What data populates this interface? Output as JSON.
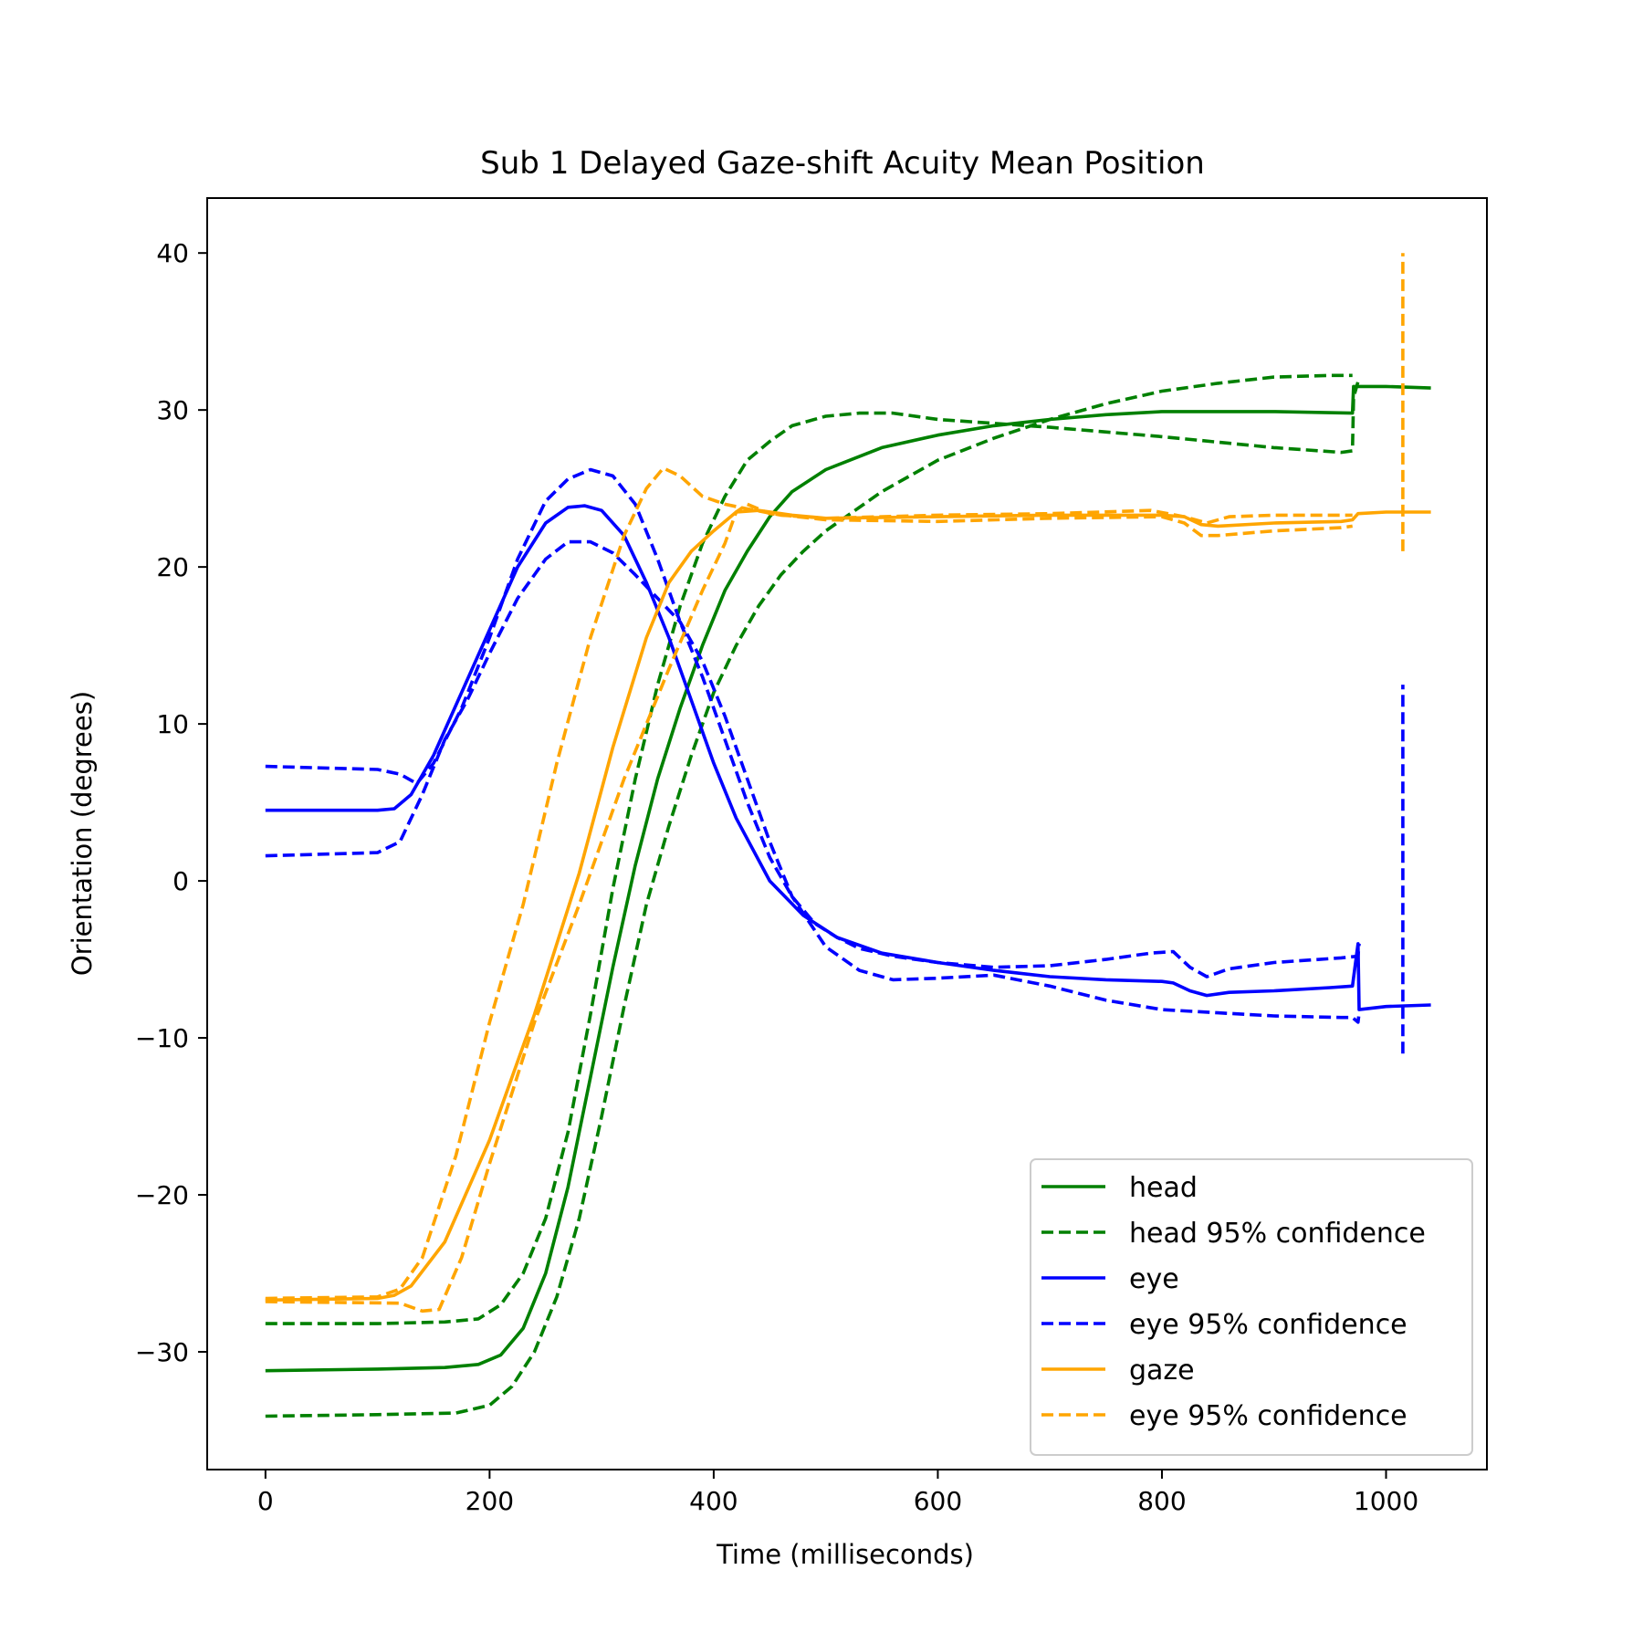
{
  "chart_data": {
    "type": "line",
    "title": "Sub 1 Delayed Gaze-shift Acuity Mean Position",
    "xlabel": "Time (milliseconds)",
    "ylabel": "Orientation (degrees)",
    "xlim": [
      -52,
      1090
    ],
    "ylim": [
      -37.5,
      43.5
    ],
    "xticks": [
      0,
      200,
      400,
      600,
      800,
      1000
    ],
    "yticks": [
      -30,
      -20,
      -10,
      0,
      10,
      20,
      30,
      40
    ],
    "ytick_labels": [
      "−30",
      "−20",
      "−10",
      "0",
      "10",
      "20",
      "30",
      "40"
    ],
    "grid": false,
    "legend_position": "lower-right",
    "series": [
      {
        "name": "head",
        "color": "#008000",
        "style": "solid",
        "points": [
          [
            0,
            -31.2
          ],
          [
            100,
            -31.1
          ],
          [
            160,
            -31.0
          ],
          [
            190,
            -30.8
          ],
          [
            210,
            -30.2
          ],
          [
            230,
            -28.5
          ],
          [
            250,
            -25.0
          ],
          [
            270,
            -19.5
          ],
          [
            290,
            -12.5
          ],
          [
            310,
            -5.5
          ],
          [
            330,
            1.0
          ],
          [
            350,
            6.5
          ],
          [
            370,
            11.0
          ],
          [
            390,
            15.0
          ],
          [
            410,
            18.5
          ],
          [
            430,
            21.0
          ],
          [
            450,
            23.2
          ],
          [
            470,
            24.8
          ],
          [
            500,
            26.2
          ],
          [
            550,
            27.6
          ],
          [
            600,
            28.4
          ],
          [
            650,
            29.0
          ],
          [
            700,
            29.4
          ],
          [
            750,
            29.7
          ],
          [
            800,
            29.9
          ],
          [
            900,
            29.9
          ],
          [
            970,
            29.8
          ],
          [
            971,
            31.5
          ],
          [
            1000,
            31.5
          ],
          [
            1040,
            31.4
          ]
        ]
      },
      {
        "name": "head 95% confidence",
        "color": "#008000",
        "style": "dashed",
        "points": [
          [
            0,
            -28.2
          ],
          [
            100,
            -28.2
          ],
          [
            160,
            -28.1
          ],
          [
            190,
            -27.9
          ],
          [
            210,
            -27.0
          ],
          [
            230,
            -25.0
          ],
          [
            250,
            -21.5
          ],
          [
            270,
            -16.0
          ],
          [
            290,
            -8.5
          ],
          [
            310,
            -0.5
          ],
          [
            330,
            6.5
          ],
          [
            350,
            12.5
          ],
          [
            370,
            17.5
          ],
          [
            390,
            21.5
          ],
          [
            410,
            24.5
          ],
          [
            430,
            26.8
          ],
          [
            450,
            28.0
          ],
          [
            470,
            29.0
          ],
          [
            500,
            29.6
          ],
          [
            530,
            29.8
          ],
          [
            560,
            29.8
          ],
          [
            600,
            29.4
          ],
          [
            700,
            28.9
          ],
          [
            800,
            28.3
          ],
          [
            900,
            27.6
          ],
          [
            960,
            27.3
          ],
          [
            970,
            27.4
          ],
          [
            971,
            30.8
          ],
          [
            975,
            31.8
          ]
        ]
      },
      {
        "name": "head 95% confidence",
        "color": "#008000",
        "style": "dashed",
        "points": [
          [
            0,
            -34.1
          ],
          [
            100,
            -34.0
          ],
          [
            170,
            -33.9
          ],
          [
            200,
            -33.4
          ],
          [
            220,
            -32.2
          ],
          [
            240,
            -30.0
          ],
          [
            260,
            -26.5
          ],
          [
            280,
            -21.5
          ],
          [
            300,
            -15.0
          ],
          [
            320,
            -8.0
          ],
          [
            340,
            -1.5
          ],
          [
            360,
            3.5
          ],
          [
            380,
            8.0
          ],
          [
            400,
            12.0
          ],
          [
            420,
            15.0
          ],
          [
            440,
            17.5
          ],
          [
            460,
            19.5
          ],
          [
            480,
            21.0
          ],
          [
            500,
            22.3
          ],
          [
            550,
            24.8
          ],
          [
            600,
            26.8
          ],
          [
            650,
            28.2
          ],
          [
            700,
            29.4
          ],
          [
            750,
            30.4
          ],
          [
            800,
            31.2
          ],
          [
            850,
            31.7
          ],
          [
            900,
            32.1
          ],
          [
            950,
            32.2
          ],
          [
            970,
            32.2
          ]
        ]
      },
      {
        "name": "eye",
        "color": "#0000ff",
        "style": "solid",
        "points": [
          [
            0,
            4.5
          ],
          [
            100,
            4.5
          ],
          [
            115,
            4.6
          ],
          [
            130,
            5.5
          ],
          [
            150,
            8.0
          ],
          [
            175,
            12.0
          ],
          [
            200,
            16.0
          ],
          [
            225,
            20.0
          ],
          [
            250,
            22.8
          ],
          [
            270,
            23.8
          ],
          [
            285,
            23.9
          ],
          [
            300,
            23.6
          ],
          [
            320,
            22.0
          ],
          [
            340,
            19.0
          ],
          [
            360,
            15.5
          ],
          [
            380,
            11.5
          ],
          [
            400,
            7.5
          ],
          [
            420,
            4.0
          ],
          [
            450,
            0.0
          ],
          [
            480,
            -2.2
          ],
          [
            510,
            -3.6
          ],
          [
            550,
            -4.6
          ],
          [
            600,
            -5.2
          ],
          [
            650,
            -5.7
          ],
          [
            700,
            -6.1
          ],
          [
            750,
            -6.3
          ],
          [
            800,
            -6.4
          ],
          [
            810,
            -6.5
          ],
          [
            825,
            -7.0
          ],
          [
            840,
            -7.3
          ],
          [
            860,
            -7.1
          ],
          [
            900,
            -7.0
          ],
          [
            950,
            -6.8
          ],
          [
            970,
            -6.7
          ],
          [
            975,
            -4.0
          ],
          [
            976,
            -8.2
          ],
          [
            1000,
            -8.0
          ],
          [
            1040,
            -7.9
          ]
        ]
      },
      {
        "name": "eye 95% confidence",
        "color": "#0000ff",
        "style": "dashed",
        "points": [
          [
            0,
            7.3
          ],
          [
            100,
            7.1
          ],
          [
            120,
            6.8
          ],
          [
            135,
            6.2
          ],
          [
            150,
            7.5
          ],
          [
            175,
            11.0
          ],
          [
            200,
            15.5
          ],
          [
            225,
            20.5
          ],
          [
            250,
            24.2
          ],
          [
            270,
            25.6
          ],
          [
            290,
            26.2
          ],
          [
            310,
            25.8
          ],
          [
            330,
            24.0
          ],
          [
            350,
            20.5
          ],
          [
            370,
            16.5
          ],
          [
            390,
            13.0
          ],
          [
            410,
            9.0
          ],
          [
            430,
            5.0
          ],
          [
            450,
            1.5
          ],
          [
            470,
            -1.0
          ],
          [
            490,
            -2.7
          ],
          [
            510,
            -3.6
          ],
          [
            530,
            -4.3
          ],
          [
            560,
            -4.8
          ],
          [
            600,
            -5.2
          ],
          [
            650,
            -5.5
          ],
          [
            700,
            -5.4
          ],
          [
            750,
            -5.0
          ],
          [
            790,
            -4.6
          ],
          [
            810,
            -4.5
          ],
          [
            825,
            -5.5
          ],
          [
            840,
            -6.1
          ],
          [
            860,
            -5.6
          ],
          [
            900,
            -5.2
          ],
          [
            960,
            -4.9
          ],
          [
            975,
            -4.8
          ],
          [
            976,
            -4.0
          ]
        ]
      },
      {
        "name": "eye 95% confidence",
        "color": "#0000ff",
        "style": "dashed",
        "points": [
          [
            0,
            1.6
          ],
          [
            100,
            1.8
          ],
          [
            120,
            2.5
          ],
          [
            140,
            5.5
          ],
          [
            160,
            9.0
          ],
          [
            180,
            11.5
          ],
          [
            200,
            14.5
          ],
          [
            225,
            18.0
          ],
          [
            250,
            20.5
          ],
          [
            270,
            21.6
          ],
          [
            290,
            21.6
          ],
          [
            310,
            20.9
          ],
          [
            330,
            19.5
          ],
          [
            350,
            18.0
          ],
          [
            370,
            16.5
          ],
          [
            390,
            14.0
          ],
          [
            410,
            10.5
          ],
          [
            430,
            6.5
          ],
          [
            450,
            2.5
          ],
          [
            470,
            -1.0
          ],
          [
            500,
            -4.2
          ],
          [
            530,
            -5.7
          ],
          [
            560,
            -6.3
          ],
          [
            600,
            -6.2
          ],
          [
            650,
            -6.0
          ],
          [
            700,
            -6.7
          ],
          [
            750,
            -7.6
          ],
          [
            800,
            -8.2
          ],
          [
            850,
            -8.4
          ],
          [
            900,
            -8.6
          ],
          [
            960,
            -8.7
          ],
          [
            970,
            -8.7
          ],
          [
            975,
            -9.0
          ],
          [
            976,
            -8.4
          ]
        ]
      },
      {
        "name": "eye 95% confidence",
        "color": "#0000ff",
        "style": "dashed",
        "points": [
          [
            1015,
            -11.0
          ],
          [
            1015,
            12.5
          ]
        ]
      },
      {
        "name": "gaze",
        "color": "#ffa500",
        "style": "solid",
        "points": [
          [
            0,
            -26.7
          ],
          [
            100,
            -26.6
          ],
          [
            115,
            -26.4
          ],
          [
            130,
            -25.8
          ],
          [
            160,
            -23.0
          ],
          [
            200,
            -16.5
          ],
          [
            240,
            -8.5
          ],
          [
            280,
            0.5
          ],
          [
            310,
            8.5
          ],
          [
            340,
            15.5
          ],
          [
            360,
            19.0
          ],
          [
            380,
            21.0
          ],
          [
            400,
            22.3
          ],
          [
            420,
            23.5
          ],
          [
            440,
            23.6
          ],
          [
            470,
            23.3
          ],
          [
            500,
            23.1
          ],
          [
            600,
            23.2
          ],
          [
            700,
            23.3
          ],
          [
            800,
            23.3
          ],
          [
            820,
            23.2
          ],
          [
            835,
            22.7
          ],
          [
            850,
            22.6
          ],
          [
            900,
            22.8
          ],
          [
            960,
            22.9
          ],
          [
            970,
            23.0
          ],
          [
            975,
            23.4
          ],
          [
            1000,
            23.5
          ],
          [
            1040,
            23.5
          ]
        ]
      },
      {
        "name": "eye 95% confidence",
        "color": "#ffa500",
        "style": "dashed",
        "points": [
          [
            0,
            -26.6
          ],
          [
            100,
            -26.5
          ],
          [
            120,
            -26.0
          ],
          [
            140,
            -24.0
          ],
          [
            170,
            -17.5
          ],
          [
            200,
            -9.0
          ],
          [
            230,
            -1.5
          ],
          [
            260,
            7.5
          ],
          [
            290,
            15.5
          ],
          [
            320,
            22.0
          ],
          [
            340,
            25.0
          ],
          [
            355,
            26.3
          ],
          [
            370,
            25.8
          ],
          [
            390,
            24.5
          ],
          [
            410,
            24.0
          ],
          [
            430,
            23.7
          ],
          [
            460,
            23.3
          ],
          [
            500,
            23.1
          ],
          [
            600,
            23.3
          ],
          [
            700,
            23.4
          ],
          [
            790,
            23.6
          ],
          [
            820,
            23.2
          ],
          [
            840,
            22.8
          ],
          [
            860,
            23.2
          ],
          [
            900,
            23.3
          ],
          [
            970,
            23.3
          ]
        ]
      },
      {
        "name": "eye 95% confidence",
        "color": "#ffa500",
        "style": "dashed",
        "points": [
          [
            0,
            -26.8
          ],
          [
            120,
            -26.9
          ],
          [
            140,
            -27.4
          ],
          [
            155,
            -27.3
          ],
          [
            175,
            -24.0
          ],
          [
            200,
            -18.0
          ],
          [
            240,
            -9.0
          ],
          [
            280,
            -1.5
          ],
          [
            320,
            6.5
          ],
          [
            360,
            13.5
          ],
          [
            390,
            18.5
          ],
          [
            410,
            21.5
          ],
          [
            420,
            23.5
          ],
          [
            430,
            24.0
          ],
          [
            450,
            23.4
          ],
          [
            500,
            23.0
          ],
          [
            600,
            22.9
          ],
          [
            700,
            23.1
          ],
          [
            800,
            23.2
          ],
          [
            820,
            22.8
          ],
          [
            835,
            22.0
          ],
          [
            850,
            22.0
          ],
          [
            900,
            22.3
          ],
          [
            960,
            22.5
          ],
          [
            970,
            22.6
          ]
        ]
      },
      {
        "name": "eye 95% confidence",
        "color": "#ffa500",
        "style": "dashed",
        "points": [
          [
            1015,
            21.0
          ],
          [
            1015,
            40.0
          ]
        ]
      }
    ],
    "legend": [
      {
        "label": "head",
        "color": "#008000",
        "style": "solid"
      },
      {
        "label": "head 95% confidence",
        "color": "#008000",
        "style": "dashed"
      },
      {
        "label": "eye",
        "color": "#0000ff",
        "style": "solid"
      },
      {
        "label": "eye 95% confidence",
        "color": "#0000ff",
        "style": "dashed"
      },
      {
        "label": "gaze",
        "color": "#ffa500",
        "style": "solid"
      },
      {
        "label": "eye 95% confidence",
        "color": "#ffa500",
        "style": "dashed"
      }
    ]
  }
}
